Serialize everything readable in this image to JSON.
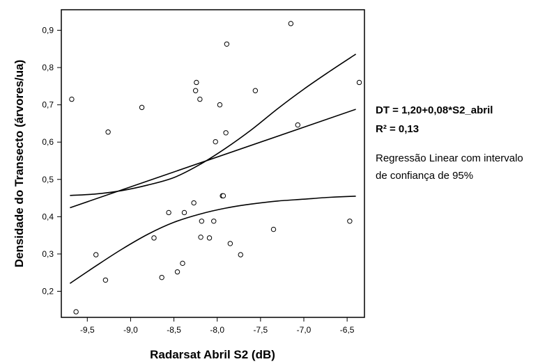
{
  "chart_data": {
    "type": "scatter",
    "xlabel": "Radarsat Abril S2 (dB)",
    "ylabel": "Densidade do Transecto (árvores/ua)",
    "xlim": [
      -9.8,
      -6.3
    ],
    "ylim": [
      0.13,
      0.955
    ],
    "xticks": [
      -9.5,
      -9.0,
      -8.5,
      -8.0,
      -7.5,
      -7.0,
      -6.5
    ],
    "xtick_labels": [
      "-9,5",
      "-9,0",
      "-8,5",
      "-8,0",
      "-7,5",
      "-7,0",
      "-6,5"
    ],
    "yticks": [
      0.2,
      0.3,
      0.4,
      0.5,
      0.6,
      0.7,
      0.8,
      0.9
    ],
    "ytick_labels": [
      "0,2",
      "0,3",
      "0,4",
      "0,5",
      "0,6",
      "0,7",
      "0,8",
      "0,9"
    ],
    "grid": false,
    "points": [
      {
        "x": -9.68,
        "y": 0.715
      },
      {
        "x": -9.63,
        "y": 0.145
      },
      {
        "x": -9.4,
        "y": 0.298
      },
      {
        "x": -9.29,
        "y": 0.23
      },
      {
        "x": -9.26,
        "y": 0.627
      },
      {
        "x": -8.87,
        "y": 0.693
      },
      {
        "x": -8.73,
        "y": 0.343
      },
      {
        "x": -8.64,
        "y": 0.237
      },
      {
        "x": -8.56,
        "y": 0.411
      },
      {
        "x": -8.46,
        "y": 0.252
      },
      {
        "x": -8.4,
        "y": 0.275
      },
      {
        "x": -8.38,
        "y": 0.411
      },
      {
        "x": -8.27,
        "y": 0.437
      },
      {
        "x": -8.25,
        "y": 0.738
      },
      {
        "x": -8.24,
        "y": 0.76
      },
      {
        "x": -8.2,
        "y": 0.715
      },
      {
        "x": -8.19,
        "y": 0.345
      },
      {
        "x": -8.18,
        "y": 0.388
      },
      {
        "x": -8.09,
        "y": 0.343
      },
      {
        "x": -8.04,
        "y": 0.388
      },
      {
        "x": -8.02,
        "y": 0.601
      },
      {
        "x": -7.97,
        "y": 0.7
      },
      {
        "x": -7.94,
        "y": 0.456
      },
      {
        "x": -7.93,
        "y": 0.456
      },
      {
        "x": -7.9,
        "y": 0.625
      },
      {
        "x": -7.89,
        "y": 0.863
      },
      {
        "x": -7.85,
        "y": 0.328
      },
      {
        "x": -7.73,
        "y": 0.298
      },
      {
        "x": -7.56,
        "y": 0.738
      },
      {
        "x": -7.35,
        "y": 0.366
      },
      {
        "x": -7.15,
        "y": 0.918
      },
      {
        "x": -7.07,
        "y": 0.646
      },
      {
        "x": -6.47,
        "y": 0.388
      },
      {
        "x": -6.36,
        "y": 0.76
      }
    ],
    "fit": {
      "intercept": 1.2,
      "slope": 0.08,
      "x_range": [
        -9.7,
        -6.4
      ]
    },
    "confidence_upper": [
      {
        "x": -9.7,
        "y": 0.457
      },
      {
        "x": -9.4,
        "y": 0.461
      },
      {
        "x": -9.1,
        "y": 0.47
      },
      {
        "x": -8.8,
        "y": 0.485
      },
      {
        "x": -8.5,
        "y": 0.505
      },
      {
        "x": -8.2,
        "y": 0.54
      },
      {
        "x": -7.9,
        "y": 0.584
      },
      {
        "x": -7.6,
        "y": 0.634
      },
      {
        "x": -7.3,
        "y": 0.69
      },
      {
        "x": -7.0,
        "y": 0.742
      },
      {
        "x": -6.7,
        "y": 0.79
      },
      {
        "x": -6.4,
        "y": 0.836
      }
    ],
    "confidence_lower": [
      {
        "x": -9.7,
        "y": 0.221
      },
      {
        "x": -9.4,
        "y": 0.268
      },
      {
        "x": -9.1,
        "y": 0.313
      },
      {
        "x": -8.8,
        "y": 0.353
      },
      {
        "x": -8.5,
        "y": 0.385
      },
      {
        "x": -8.2,
        "y": 0.407
      },
      {
        "x": -7.9,
        "y": 0.423
      },
      {
        "x": -7.6,
        "y": 0.434
      },
      {
        "x": -7.3,
        "y": 0.442
      },
      {
        "x": -7.0,
        "y": 0.447
      },
      {
        "x": -6.7,
        "y": 0.452
      },
      {
        "x": -6.4,
        "y": 0.455
      }
    ],
    "annotations": {
      "equation": "DT = 1,20+0,08*S2_abril",
      "r_squared": "R² = 0,13",
      "description_line1": "Regressão Linear com intervalo",
      "description_line2": "de confiança de 95%"
    }
  }
}
